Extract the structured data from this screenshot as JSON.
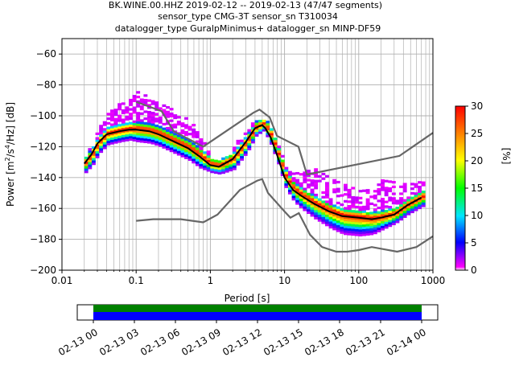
{
  "chart_data": {
    "type": "heatmap",
    "title_lines": [
      "BK.WINE.00.HHZ   2019-02-12 -- 2019-02-13  (47/47 segments)",
      "sensor_type CMG-3T sensor_sn T310034",
      "datalogger_type GuralpMinimus+ datalogger_sn MINP-DF59"
    ],
    "xlabel": "Period [s]",
    "ylabel_parts": [
      "Power [m",
      "2",
      "/s",
      "4",
      "/Hz] [dB]"
    ],
    "xscale": "log",
    "xlim": [
      0.01,
      1000
    ],
    "ylim": [
      -200,
      -50
    ],
    "xticks": [
      0.01,
      0.1,
      1,
      10,
      100,
      1000
    ],
    "xtick_labels": [
      "0.01",
      "0.1",
      "1",
      "10",
      "100",
      "1000"
    ],
    "yticks": [
      -200,
      -180,
      -160,
      -140,
      -120,
      -100,
      -80,
      -60
    ],
    "ytick_labels": [
      "−200",
      "−180",
      "−160",
      "−140",
      "−120",
      "−100",
      "−80",
      "−60"
    ],
    "grid": true,
    "colorbar": {
      "label": "[%]",
      "range": [
        0,
        30
      ],
      "ticks": [
        0,
        5,
        10,
        15,
        20,
        25,
        30
      ],
      "tick_labels": [
        "0",
        "5",
        "10",
        "15",
        "20",
        "25",
        "30"
      ],
      "colormap": [
        "#ffffff",
        "#ff00ff",
        "#0000ff",
        "#00e5ff",
        "#00ff00",
        "#ffff00",
        "#ff0000"
      ]
    },
    "noise_models": [
      {
        "x": [
          0.1,
          0.17,
          0.4,
          0.8,
          1.25,
          2.5,
          4.3,
          5,
          6,
          10,
          12,
          15.6,
          22,
          32,
          50,
          70,
          100,
          150,
          330,
          600,
          1000
        ],
        "y": [
          -168,
          -167,
          -167,
          -169,
          -164,
          -148,
          -142,
          -141,
          -150,
          -162,
          -166,
          -163,
          -177,
          -185,
          -188,
          -188,
          -187,
          -185,
          -188,
          -185,
          -178
        ]
      },
      {
        "x": [
          0.1,
          0.22,
          0.32,
          0.8,
          3.8,
          4.6,
          6.3,
          7.9,
          15.4,
          20,
          354,
          1000
        ],
        "y": [
          -91,
          -97,
          -110,
          -120,
          -98,
          -96,
          -101,
          -113,
          -120,
          -138,
          -126,
          -111
        ]
      }
    ],
    "mean_curve": {
      "x": [
        0.02,
        0.025,
        0.03,
        0.04,
        0.06,
        0.08,
        0.1,
        0.15,
        0.2,
        0.3,
        0.5,
        0.7,
        1,
        1.3,
        2,
        3,
        4,
        5,
        5.5,
        6.5,
        8,
        10,
        13,
        17,
        25,
        40,
        60,
        100,
        150,
        200,
        300,
        450,
        700
      ],
      "y": [
        -131,
        -125,
        -118,
        -112,
        -110,
        -109,
        -109,
        -110,
        -112,
        -116,
        -121,
        -126,
        -132,
        -133,
        -128,
        -117,
        -108,
        -106,
        -108,
        -114,
        -126,
        -140,
        -148,
        -152,
        -157,
        -162,
        -165,
        -166,
        -167,
        -166,
        -164,
        -158,
        -153
      ]
    },
    "density": {
      "periods": [
        0.02,
        0.025,
        0.03,
        0.04,
        0.06,
        0.08,
        0.1,
        0.15,
        0.2,
        0.3,
        0.5,
        0.7,
        1,
        1.3,
        2,
        3,
        4,
        5,
        5.5,
        6.5,
        8,
        10,
        13,
        17,
        25,
        40,
        60,
        100,
        150,
        200,
        300,
        450,
        700
      ],
      "center_db": [
        -131,
        -125,
        -118,
        -112,
        -110,
        -109,
        -109,
        -110,
        -112,
        -116,
        -121,
        -126,
        -132,
        -133,
        -128,
        -117,
        -108,
        -106,
        -108,
        -114,
        -126,
        -140,
        -148,
        -152,
        -157,
        -162,
        -165,
        -166,
        -167,
        -166,
        -164,
        -158,
        -153
      ],
      "spread_above_db": [
        5,
        6,
        9,
        13,
        18,
        20,
        24,
        22,
        20,
        19,
        18,
        14,
        3,
        3,
        8,
        8,
        5,
        3,
        5,
        5,
        6,
        6,
        10,
        16,
        22,
        22,
        20,
        17,
        20,
        24,
        20,
        14,
        10
      ],
      "spread_below_db": [
        6,
        7,
        7,
        7,
        7,
        7,
        8,
        8,
        8,
        8,
        8,
        8,
        5,
        5,
        7,
        7,
        5,
        4,
        5,
        6,
        6,
        7,
        8,
        9,
        10,
        11,
        12,
        12,
        10,
        8,
        6,
        6,
        6
      ]
    },
    "time_bar": {
      "ticks": [
        "02-13 00",
        "02-13 03",
        "02-13 06",
        "02-13 09",
        "02-13 12",
        "02-13 15",
        "02-13 18",
        "02-13 21",
        "02-14 00"
      ],
      "coverage_color": "#008000",
      "segments_color": "#0000ff"
    }
  }
}
